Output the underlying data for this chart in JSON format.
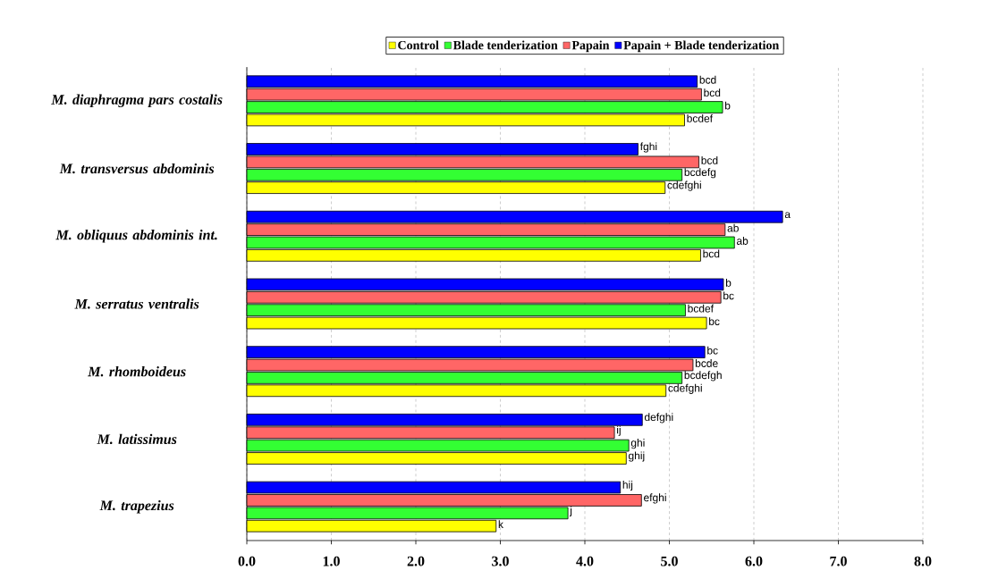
{
  "chart_data": {
    "type": "bar",
    "orientation": "horizontal",
    "categories": [
      "M. diaphragma pars costalis",
      "M. transversus abdominis",
      "M. obliquus abdominis int.",
      "M. serratus ventralis",
      "M. rhomboideus",
      "M. latissimus",
      "M. trapezius"
    ],
    "series": [
      {
        "name": "Control",
        "color": "#ffff00",
        "values": [
          5.18,
          4.95,
          5.37,
          5.44,
          4.96,
          4.49,
          2.95
        ],
        "value_labels": [
          "bcdef",
          "cdefghi",
          "bcd",
          "bc",
          "cdefghi",
          "ghij",
          "k"
        ]
      },
      {
        "name": "Blade tenderization",
        "color": "#33ff33",
        "values": [
          5.63,
          5.15,
          5.77,
          5.19,
          5.15,
          4.52,
          3.8
        ],
        "value_labels": [
          "b",
          "bcdefg",
          "ab",
          "bcdef",
          "bcdefgh",
          "ghi",
          "j"
        ]
      },
      {
        "name": "Papain",
        "color": "#ff6666",
        "values": [
          5.38,
          5.35,
          5.66,
          5.61,
          5.28,
          4.35,
          4.67
        ],
        "value_labels": [
          "bcd",
          "bcd",
          "ab",
          "bc",
          "bcde",
          "ij",
          "efghi"
        ]
      },
      {
        "name": "Papain + Blade tenderization",
        "color": "#0000ff",
        "values": [
          5.33,
          4.63,
          6.34,
          5.64,
          5.42,
          4.68,
          4.42
        ],
        "value_labels": [
          "bcd",
          "fghi",
          "a",
          "b",
          "bc",
          "defghi",
          "hij"
        ]
      }
    ],
    "xlim": [
      0,
      8
    ],
    "xticks": [
      {
        "value": 0,
        "label": "0.0"
      },
      {
        "value": 1,
        "label": "1.0"
      },
      {
        "value": 2,
        "label": "2.0"
      },
      {
        "value": 3,
        "label": "3.0"
      },
      {
        "value": 4,
        "label": "4.0"
      },
      {
        "value": 5,
        "label": "5.0"
      },
      {
        "value": 6,
        "label": "6.0"
      },
      {
        "value": 7,
        "label": "7.0"
      },
      {
        "value": 8,
        "label": "8.0"
      }
    ],
    "grid": "x",
    "legend": "top"
  }
}
